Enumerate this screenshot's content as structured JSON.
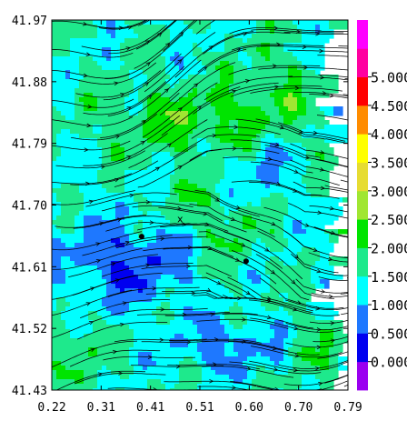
{
  "chart_data": {
    "type": "heatmap",
    "title": "",
    "xlabel": "",
    "ylabel": "",
    "xlim": [
      0.22,
      0.79
    ],
    "ylim": [
      41.43,
      41.97
    ],
    "x_ticks": [
      "0.22",
      "0.31",
      "0.41",
      "0.51",
      "0.60",
      "0.70",
      "0.79"
    ],
    "y_ticks": [
      "41.97",
      "41.88",
      "41.79",
      "41.70",
      "41.61",
      "41.52",
      "41.43"
    ],
    "overlay": "streamlines",
    "colorbar": {
      "ticks": [
        "0.000",
        "0.500",
        "1.000",
        "1.500",
        "2.000",
        "2.500",
        "3.000",
        "3.500",
        "4.000",
        "4.500",
        "5.000"
      ],
      "bins": [
        {
          "min": -0.5,
          "max": 0.0,
          "color": "#9a00f0"
        },
        {
          "min": 0.0,
          "max": 0.5,
          "color": "#0000f0"
        },
        {
          "min": 0.5,
          "max": 1.0,
          "color": "#1e78ff"
        },
        {
          "min": 1.0,
          "max": 1.5,
          "color": "#00ffff"
        },
        {
          "min": 1.5,
          "max": 2.0,
          "color": "#1ee98c"
        },
        {
          "min": 2.0,
          "max": 2.5,
          "color": "#00e400"
        },
        {
          "min": 2.5,
          "max": 3.0,
          "color": "#a0e632"
        },
        {
          "min": 3.0,
          "max": 3.5,
          "color": "#e6dc32"
        },
        {
          "min": 3.5,
          "max": 4.0,
          "color": "#ffff00"
        },
        {
          "min": 4.0,
          "max": 4.5,
          "color": "#ff8c00"
        },
        {
          "min": 4.5,
          "max": 5.0,
          "color": "#ff0000"
        },
        {
          "min": 5.0,
          "max": 5.5,
          "color": "#ff00a0"
        },
        {
          "min": 5.5,
          "max": 6.0,
          "color": "#ff00ff"
        }
      ]
    },
    "markers": [
      {
        "label": "",
        "x": 0.393,
        "y": 41.654,
        "symbol": "dot"
      },
      {
        "label": "",
        "x": 0.594,
        "y": 41.618,
        "symbol": "dot"
      },
      {
        "label": "x",
        "x": 0.467,
        "y": 41.68,
        "symbol": "text"
      }
    ]
  }
}
